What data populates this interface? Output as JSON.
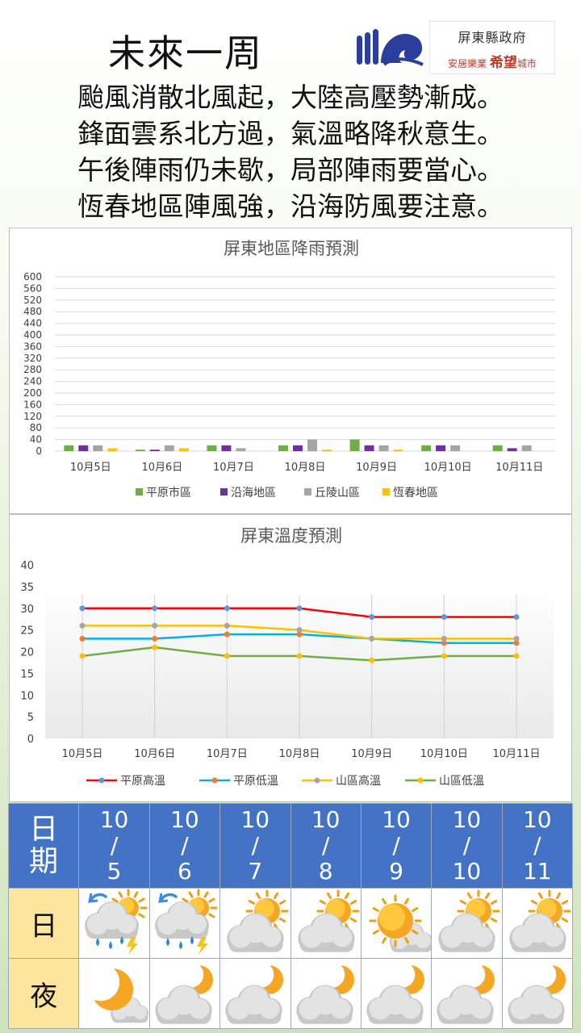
{
  "header": {
    "title": "未來一周",
    "gov_name": "屏東縣政府",
    "gov_slogan_a": "安居樂業",
    "gov_slogan_b": "希望",
    "gov_slogan_c": "城市"
  },
  "poem": [
    "颱風消散北風起，大陸高壓勢漸成。",
    "鋒面雲系北方過，氣溫略降秋意生。",
    "午後陣雨仍未歇，局部陣雨要當心。",
    "恆春地區陣風強，沿海防風要注意。"
  ],
  "colors": {
    "rain_green": "#70ad47",
    "rain_purple": "#7030a0",
    "rain_gray": "#a5a5a5",
    "rain_yellow": "#ffc000",
    "temp_red": "#ff0000",
    "temp_blue": "#00b0f0",
    "temp_yellow": "#ffc000",
    "temp_green": "#70ad47",
    "table_header": "#4472c4",
    "row_label": "#fde59d"
  },
  "chart_data": [
    {
      "type": "bar",
      "title": "屏東地區降雨預測",
      "categories": [
        "10月5日",
        "10月6日",
        "10月7日",
        "10月8日",
        "10月9日",
        "10月10日",
        "10月11日"
      ],
      "series": [
        {
          "name": "平原市區",
          "values": [
            20,
            5,
            20,
            20,
            40,
            20,
            20
          ]
        },
        {
          "name": "沿海地區",
          "values": [
            20,
            5,
            20,
            20,
            20,
            20,
            10
          ]
        },
        {
          "name": "丘陵山區",
          "values": [
            20,
            20,
            10,
            40,
            20,
            20,
            20
          ]
        },
        {
          "name": "恆春地區",
          "values": [
            10,
            10,
            0,
            5,
            5,
            0,
            0
          ]
        }
      ],
      "ylim": [
        0,
        600
      ],
      "yticks": [
        0,
        40,
        80,
        120,
        160,
        200,
        240,
        280,
        320,
        360,
        400,
        440,
        480,
        520,
        560,
        600
      ],
      "grid": true,
      "legend": "bottom"
    },
    {
      "type": "line",
      "title": "屏東溫度預測",
      "categories": [
        "10月5日",
        "10月6日",
        "10月7日",
        "10月8日",
        "10月9日",
        "10月10日",
        "10月11日"
      ],
      "series": [
        {
          "name": "平原高溫",
          "values": [
            30,
            30,
            30,
            30,
            28,
            28,
            28
          ]
        },
        {
          "name": "平原低溫",
          "values": [
            23,
            23,
            24,
            24,
            23,
            22,
            22
          ]
        },
        {
          "name": "山區高溫",
          "values": [
            26,
            26,
            26,
            25,
            23,
            23,
            23
          ]
        },
        {
          "name": "山區低溫",
          "values": [
            19,
            21,
            19,
            19,
            18,
            19,
            19
          ]
        }
      ],
      "ylim": [
        0,
        40
      ],
      "yticks": [
        0,
        5,
        10,
        15,
        20,
        25,
        30,
        35,
        40
      ],
      "grid": true,
      "legend": "bottom"
    }
  ],
  "table": {
    "date_label_1": "日",
    "date_label_2": "期",
    "day_label": "日",
    "night_label": "夜",
    "dates": [
      {
        "m": "10",
        "s": "/",
        "d": "5"
      },
      {
        "m": "10",
        "s": "/",
        "d": "6"
      },
      {
        "m": "10",
        "s": "/",
        "d": "7"
      },
      {
        "m": "10",
        "s": "/",
        "d": "8"
      },
      {
        "m": "10",
        "s": "/",
        "d": "9"
      },
      {
        "m": "10",
        "s": "/",
        "d": "10"
      },
      {
        "m": "10",
        "s": "/",
        "d": "11"
      }
    ],
    "day_icons": [
      "thunderstorm-icon",
      "thunderstorm-icon",
      "partly-cloudy-day-icon",
      "partly-cloudy-day-icon",
      "sunny-icon",
      "partly-cloudy-day-icon",
      "partly-cloudy-day-icon"
    ],
    "night_icons": [
      "clear-night-icon",
      "partly-cloudy-night-icon",
      "partly-cloudy-night-icon",
      "partly-cloudy-night-icon",
      "partly-cloudy-night-icon",
      "partly-cloudy-night-icon",
      "partly-cloudy-night-icon"
    ]
  }
}
